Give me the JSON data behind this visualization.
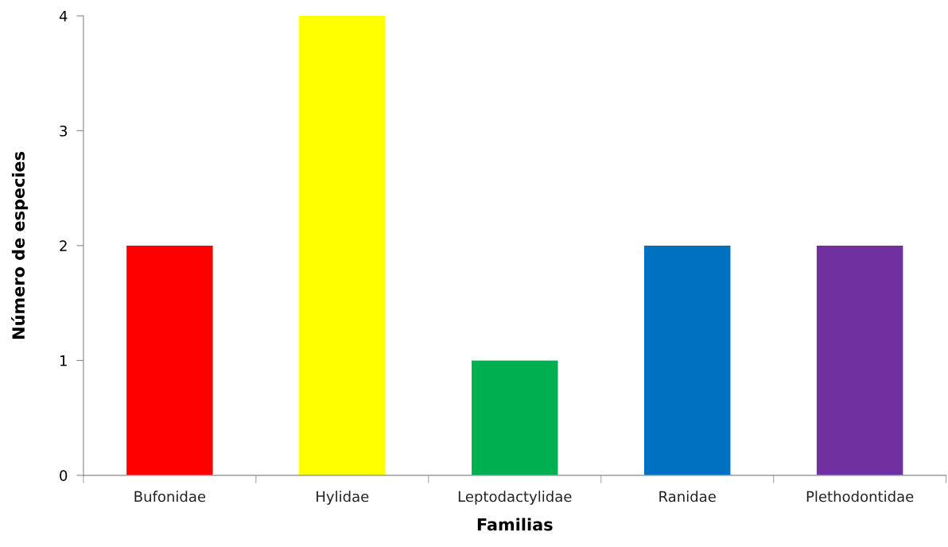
{
  "chart_data": {
    "type": "bar",
    "xlabel": "Familias",
    "ylabel": "Número de especies",
    "categories": [
      "Bufonidae",
      "Hylidae",
      "Leptodactylidae",
      "Ranidae",
      "Plethodontidae"
    ],
    "values": [
      2,
      4,
      1,
      2,
      2
    ],
    "colors": [
      "#ff0000",
      "#ffff00",
      "#00b050",
      "#0070c0",
      "#7030a0"
    ],
    "ylim": [
      0,
      4
    ],
    "yticks": [
      0,
      1,
      2,
      3,
      4
    ],
    "grid": false,
    "legend": false
  }
}
